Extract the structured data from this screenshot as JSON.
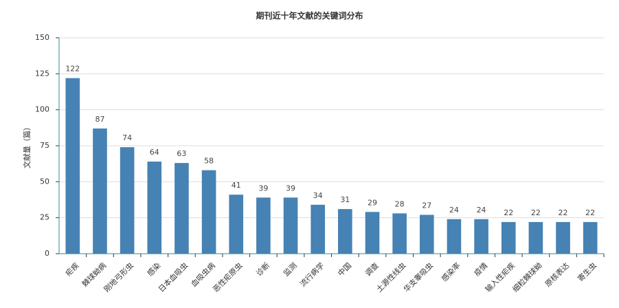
{
  "chart_data": {
    "type": "bar",
    "title": "期刊近十年文献的关键词分布",
    "xlabel": "",
    "ylabel": "文献量（篇）",
    "ylim": [
      0,
      150
    ],
    "yticks": [
      0,
      25,
      50,
      75,
      100,
      125,
      150
    ],
    "grid": true,
    "bar_color": "#4682b4",
    "categories": [
      "疟疾",
      "棘球蚴病",
      "刚地弓形虫",
      "感染",
      "日本血吸虫",
      "血吸虫病",
      "恶性疟原虫",
      "诊断",
      "监测",
      "流行病学",
      "中国",
      "调查",
      "土源性线虫",
      "华支睾吸虫",
      "感染率",
      "疫情",
      "输入性疟疾",
      "细粒棘球蚴",
      "原核表达",
      "寄生虫"
    ],
    "values": [
      122,
      87,
      74,
      64,
      63,
      58,
      41,
      39,
      39,
      34,
      31,
      29,
      28,
      27,
      24,
      24,
      22,
      22,
      22,
      22
    ]
  }
}
